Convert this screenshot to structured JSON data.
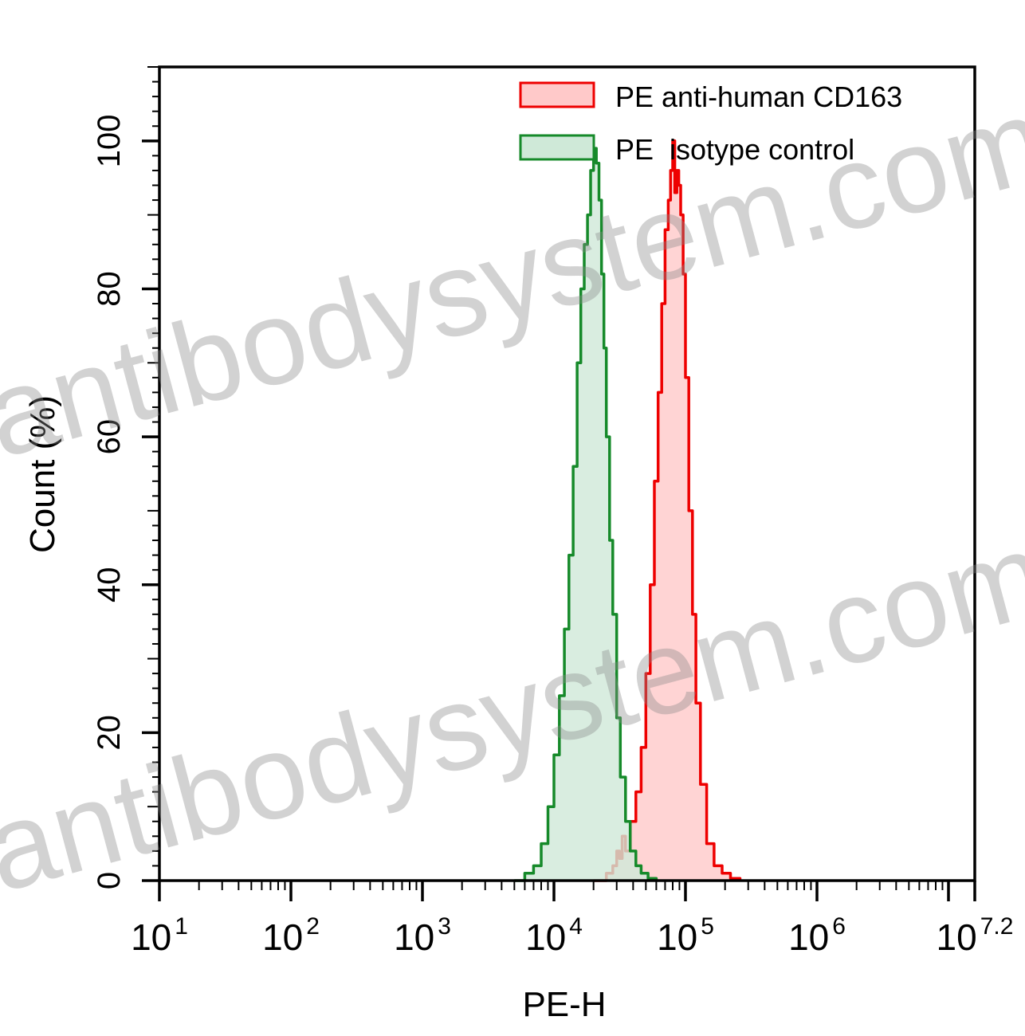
{
  "chart_data": {
    "type": "area",
    "xlabel": "PE-H",
    "ylabel": "Count (%)",
    "x_scale": "log10",
    "xlim": [
      10,
      15848932
    ],
    "ylim": [
      0,
      110
    ],
    "x_ticks": [
      {
        "base": "10",
        "exp": "1"
      },
      {
        "base": "10",
        "exp": "2"
      },
      {
        "base": "10",
        "exp": "3"
      },
      {
        "base": "10",
        "exp": "4"
      },
      {
        "base": "10",
        "exp": "5"
      },
      {
        "base": "10",
        "exp": "6"
      },
      {
        "base": "10",
        "exp": "7.2"
      }
    ],
    "y_ticks": [
      "0",
      "20",
      "40",
      "60",
      "80",
      "100"
    ],
    "legend_position": "top-right",
    "grid": false,
    "series": [
      {
        "name": "PE anti-human CD163",
        "stroke": "#ee0000",
        "fill": "#ffc9c9",
        "x": [
          20000,
          25000,
          28000,
          30000,
          31500,
          33000,
          35000,
          38000,
          42000,
          46000,
          50000,
          54000,
          58000,
          62000,
          66000,
          70000,
          74000,
          77000,
          80000,
          83000,
          86000,
          89000,
          92000,
          96000,
          100000,
          106000,
          113000,
          120000,
          130000,
          145000,
          165000,
          190000,
          220000,
          260000
        ],
        "y": [
          0,
          1,
          2,
          4,
          3,
          6,
          4,
          8,
          12,
          18,
          28,
          40,
          54,
          66,
          78,
          88,
          92,
          96,
          100,
          93,
          96,
          94,
          90,
          82,
          68,
          50,
          36,
          24,
          13,
          5,
          2,
          1,
          0.3,
          0
        ]
      },
      {
        "name": "PE  isotype control",
        "stroke": "#168a2a",
        "fill": "#cfe9d8",
        "x": [
          5000,
          6000,
          7000,
          8000,
          9000,
          10000,
          11000,
          12000,
          13000,
          14000,
          15000,
          16000,
          17000,
          18000,
          19000,
          20000,
          21000,
          22000,
          23000,
          24000,
          25000,
          26500,
          28000,
          30000,
          32000,
          35000,
          38000,
          42000,
          46000,
          52000,
          60000
        ],
        "y": [
          0,
          1,
          2,
          5,
          10,
          17,
          25,
          34,
          44,
          56,
          70,
          80,
          86,
          90,
          96,
          99,
          97,
          92,
          82,
          72,
          60,
          46,
          36,
          22,
          14,
          8,
          4,
          2,
          1,
          0.3,
          0
        ]
      }
    ]
  },
  "watermark": {
    "text_1": "antibodysystem.com",
    "text_2": "antibodysystem.com",
    "color": "#8a8a8a"
  },
  "colors": {
    "axis": "#000000",
    "background": "#ffffff"
  }
}
